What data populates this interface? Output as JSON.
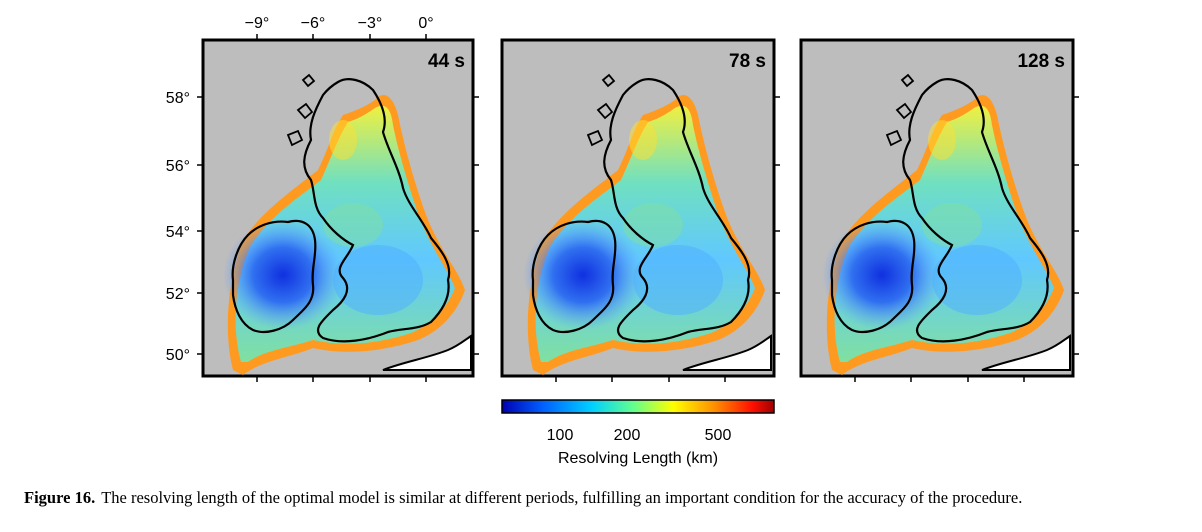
{
  "figure": {
    "panels": [
      {
        "period_label": "44 s"
      },
      {
        "period_label": "78 s"
      },
      {
        "period_label": "128 s"
      }
    ],
    "longitude_ticks": [
      "−9°",
      "−6°",
      "−3°",
      "0°"
    ],
    "latitude_ticks": [
      "58°",
      "56°",
      "54°",
      "52°",
      "50°"
    ],
    "colorbar": {
      "tick_labels": [
        "100",
        "200",
        "500"
      ],
      "label": "Resolving Length (km)",
      "colors": [
        "#0000b4",
        "#0060ff",
        "#00d0ff",
        "#60ff90",
        "#ffff00",
        "#ff9000",
        "#ff1000",
        "#a00000"
      ]
    },
    "colors": {
      "background_gray": "#bdbdbd",
      "coastline": "#000000"
    }
  },
  "caption": {
    "label": "Figure 16.",
    "text": "The resolving length of the optimal model is similar at different periods, fulfilling an important condition for the accuracy of the procedure."
  }
}
